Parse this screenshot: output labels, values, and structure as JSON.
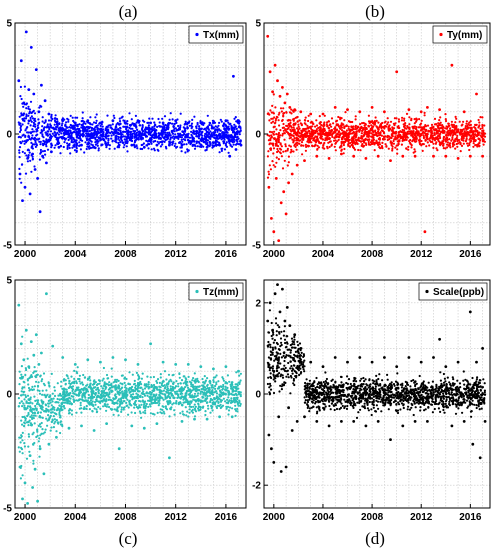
{
  "chart_data": [
    {
      "panel": "(a)",
      "type": "scatter",
      "color": "#0000ff",
      "legend": "Tx(mm)",
      "legend_position": "top-right",
      "grid": true,
      "xlim": [
        1999.2,
        2017.6
      ],
      "ylim": [
        -5,
        5
      ],
      "x_ticks": [
        2000,
        2004,
        2008,
        2012,
        2016
      ],
      "y_ticks": [
        5,
        0,
        -5
      ],
      "x_tick_labels": [
        "2000",
        "2004",
        "2008",
        "2012",
        "2016"
      ],
      "y_tick_labels": [
        "5",
        "0",
        "-5"
      ],
      "show_x_tick_labels": true,
      "series": [
        {
          "name": "Tx(mm)",
          "color": "#0000ff",
          "points": [
            [
              1999.5,
              2.4
            ],
            [
              1999.6,
              -1.8
            ],
            [
              1999.7,
              3.3
            ],
            [
              1999.8,
              -3.0
            ],
            [
              1999.9,
              1.4
            ],
            [
              2000.0,
              -2.4
            ],
            [
              2000.1,
              4.6
            ],
            [
              2000.2,
              -1.1
            ],
            [
              2000.3,
              2.0
            ],
            [
              2000.4,
              -2.7
            ],
            [
              2000.5,
              3.9
            ],
            [
              2000.6,
              -0.9
            ],
            [
              2000.7,
              1.8
            ],
            [
              2000.8,
              -1.6
            ],
            [
              2000.9,
              2.9
            ],
            [
              2001.0,
              -2.0
            ],
            [
              2001.1,
              1.0
            ],
            [
              2001.2,
              -3.5
            ],
            [
              2001.3,
              2.2
            ],
            [
              2001.4,
              -1.0
            ],
            [
              2001.6,
              1.5
            ],
            [
              2001.7,
              -1.3
            ],
            [
              2001.9,
              0.9
            ],
            [
              2002.1,
              -0.8
            ],
            [
              2002.4,
              0.7
            ],
            [
              2002.7,
              -0.6
            ],
            [
              2003.0,
              0.6
            ],
            [
              2003.5,
              -0.5
            ],
            [
              2004.0,
              0.5
            ],
            [
              2004.5,
              -0.5
            ],
            [
              2005.0,
              0.6
            ],
            [
              2005.5,
              -0.6
            ],
            [
              2006.0,
              0.5
            ],
            [
              2006.5,
              -0.5
            ],
            [
              2007.0,
              0.6
            ],
            [
              2007.5,
              -0.5
            ],
            [
              2008.0,
              0.5
            ],
            [
              2008.5,
              -0.5
            ],
            [
              2009.0,
              0.6
            ],
            [
              2009.5,
              -0.6
            ],
            [
              2010.0,
              0.5
            ],
            [
              2010.5,
              -0.5
            ],
            [
              2011.0,
              0.5
            ],
            [
              2011.5,
              -0.5
            ],
            [
              2012.0,
              0.6
            ],
            [
              2012.5,
              -0.5
            ],
            [
              2013.0,
              0.5
            ],
            [
              2013.5,
              -0.5
            ],
            [
              2014.0,
              0.5
            ],
            [
              2014.5,
              -0.6
            ],
            [
              2015.0,
              0.5
            ],
            [
              2015.5,
              -0.5
            ],
            [
              2016.0,
              0.6
            ],
            [
              2016.3,
              -1.0
            ],
            [
              2016.6,
              2.6
            ],
            [
              2016.8,
              -0.7
            ],
            [
              2017.0,
              0.6
            ],
            [
              2017.2,
              -0.5
            ]
          ]
        }
      ]
    },
    {
      "panel": "(b)",
      "type": "scatter",
      "color": "#ff0000",
      "legend": "Ty(mm)",
      "legend_position": "top-right",
      "grid": true,
      "xlim": [
        1999.2,
        2017.6
      ],
      "ylim": [
        -5,
        5
      ],
      "x_ticks": [
        2000,
        2004,
        2008,
        2012,
        2016
      ],
      "y_ticks": [
        5,
        0,
        -5
      ],
      "x_tick_labels": [
        "2000",
        "2004",
        "2008",
        "2012",
        "2016"
      ],
      "y_tick_labels": [
        "5",
        "0",
        "-5"
      ],
      "show_x_tick_labels": true,
      "series": [
        {
          "name": "Ty(mm)",
          "color": "#ff0000",
          "points": [
            [
              1999.5,
              4.4
            ],
            [
              1999.6,
              -2.4
            ],
            [
              1999.7,
              2.8
            ],
            [
              1999.8,
              -3.8
            ],
            [
              1999.9,
              1.9
            ],
            [
              2000.0,
              -4.4
            ],
            [
              2000.1,
              3.1
            ],
            [
              2000.2,
              -2.0
            ],
            [
              2000.3,
              2.4
            ],
            [
              2000.4,
              -4.8
            ],
            [
              2000.5,
              1.7
            ],
            [
              2000.6,
              -3.1
            ],
            [
              2000.7,
              2.1
            ],
            [
              2000.8,
              -2.6
            ],
            [
              2000.9,
              1.4
            ],
            [
              2001.0,
              -3.6
            ],
            [
              2001.1,
              1.8
            ],
            [
              2001.2,
              -2.2
            ],
            [
              2001.3,
              1.2
            ],
            [
              2001.5,
              -1.8
            ],
            [
              2001.7,
              1.1
            ],
            [
              2001.9,
              -1.4
            ],
            [
              2002.2,
              1.0
            ],
            [
              2002.5,
              -1.2
            ],
            [
              2003.0,
              0.9
            ],
            [
              2003.5,
              -1.0
            ],
            [
              2004.0,
              0.9
            ],
            [
              2004.5,
              -1.1
            ],
            [
              2005.0,
              1.2
            ],
            [
              2005.5,
              -0.9
            ],
            [
              2006.0,
              1.1
            ],
            [
              2006.5,
              -1.0
            ],
            [
              2007.0,
              1.0
            ],
            [
              2007.5,
              -1.1
            ],
            [
              2008.0,
              1.2
            ],
            [
              2008.5,
              -1.0
            ],
            [
              2009.0,
              1.0
            ],
            [
              2009.5,
              -1.2
            ],
            [
              2010.0,
              2.8
            ],
            [
              2010.5,
              -1.0
            ],
            [
              2011.0,
              1.1
            ],
            [
              2011.5,
              -1.0
            ],
            [
              2012.0,
              1.0
            ],
            [
              2012.3,
              -4.4
            ],
            [
              2012.5,
              1.2
            ],
            [
              2013.0,
              -1.0
            ],
            [
              2013.5,
              1.1
            ],
            [
              2014.0,
              -1.0
            ],
            [
              2014.5,
              3.1
            ],
            [
              2015.0,
              -1.1
            ],
            [
              2015.5,
              1.0
            ],
            [
              2016.0,
              -1.0
            ],
            [
              2016.5,
              1.8
            ],
            [
              2017.0,
              -1.0
            ]
          ]
        }
      ]
    },
    {
      "panel": "(c)",
      "type": "scatter",
      "color": "#2abfb8",
      "legend": "Tz(mm)",
      "legend_position": "top-right",
      "grid": true,
      "xlim": [
        1999.2,
        2017.6
      ],
      "ylim": [
        -5,
        5
      ],
      "x_ticks": [
        2000,
        2004,
        2008,
        2012,
        2016
      ],
      "y_ticks": [
        5,
        0,
        -5
      ],
      "x_tick_labels": [
        "2000",
        "2004",
        "2008",
        "2012",
        "2016"
      ],
      "y_tick_labels": [
        "5",
        "0",
        "-5"
      ],
      "show_x_tick_labels": true,
      "series": [
        {
          "name": "Tz(mm)",
          "color": "#2abfb8",
          "points": [
            [
              1999.5,
              3.9
            ],
            [
              1999.6,
              -3.2
            ],
            [
              1999.7,
              2.2
            ],
            [
              1999.8,
              -4.6
            ],
            [
              1999.9,
              1.5
            ],
            [
              2000.0,
              -3.9
            ],
            [
              2000.1,
              2.8
            ],
            [
              2000.2,
              -4.8
            ],
            [
              2000.3,
              1.2
            ],
            [
              2000.4,
              -2.7
            ],
            [
              2000.5,
              2.3
            ],
            [
              2000.6,
              -4.1
            ],
            [
              2000.7,
              1.7
            ],
            [
              2000.8,
              -3.3
            ],
            [
              2000.9,
              2.6
            ],
            [
              2001.0,
              -4.7
            ],
            [
              2001.1,
              1.3
            ],
            [
              2001.2,
              -2.4
            ],
            [
              2001.3,
              1.8
            ],
            [
              2001.5,
              -3.5
            ],
            [
              2001.7,
              4.4
            ],
            [
              2001.9,
              -2.2
            ],
            [
              2002.2,
              2.1
            ],
            [
              2002.5,
              -1.9
            ],
            [
              2003.0,
              1.6
            ],
            [
              2003.5,
              -1.5
            ],
            [
              2004.0,
              1.3
            ],
            [
              2004.5,
              -1.4
            ],
            [
              2005.0,
              1.5
            ],
            [
              2005.5,
              -1.6
            ],
            [
              2006.0,
              1.4
            ],
            [
              2006.5,
              -1.3
            ],
            [
              2007.0,
              1.6
            ],
            [
              2007.5,
              -2.4
            ],
            [
              2008.0,
              1.5
            ],
            [
              2008.5,
              -1.4
            ],
            [
              2009.0,
              1.3
            ],
            [
              2009.5,
              -1.5
            ],
            [
              2010.0,
              2.2
            ],
            [
              2010.5,
              -1.3
            ],
            [
              2011.0,
              1.4
            ],
            [
              2011.5,
              -2.8
            ],
            [
              2012.0,
              1.3
            ],
            [
              2012.5,
              -1.2
            ],
            [
              2013.0,
              1.3
            ],
            [
              2013.5,
              -1.1
            ],
            [
              2014.0,
              1.2
            ],
            [
              2014.5,
              -1.1
            ],
            [
              2015.0,
              1.1
            ],
            [
              2015.5,
              -1.0
            ],
            [
              2016.0,
              1.2
            ],
            [
              2016.5,
              -1.0
            ],
            [
              2017.0,
              1.0
            ]
          ]
        }
      ]
    },
    {
      "panel": "(d)",
      "type": "scatter",
      "color": "#000000",
      "legend": "Scale(ppb)",
      "legend_position": "top-right",
      "grid": true,
      "xlim": [
        1999.2,
        2017.6
      ],
      "ylim": [
        -2.5,
        2.5
      ],
      "x_ticks": [
        2000,
        2004,
        2008,
        2012,
        2016
      ],
      "y_ticks": [
        2,
        0,
        -2
      ],
      "x_tick_labels": [
        "2000",
        "2004",
        "2008",
        "2012",
        "2016"
      ],
      "y_tick_labels": [
        "2",
        "0",
        "-2"
      ],
      "show_x_tick_labels": true,
      "series": [
        {
          "name": "Scale(ppb)",
          "color": "#000000",
          "points": [
            [
              1999.5,
              1.6
            ],
            [
              1999.6,
              -0.9
            ],
            [
              1999.7,
              2.0
            ],
            [
              1999.8,
              -1.2
            ],
            [
              1999.9,
              1.4
            ],
            [
              2000.0,
              -1.5
            ],
            [
              2000.1,
              2.2
            ],
            [
              2000.2,
              0.4
            ],
            [
              2000.3,
              2.4
            ],
            [
              2000.4,
              -0.5
            ],
            [
              2000.5,
              1.8
            ],
            [
              2000.6,
              -1.7
            ],
            [
              2000.7,
              2.3
            ],
            [
              2000.8,
              0.2
            ],
            [
              2000.9,
              1.6
            ],
            [
              2001.0,
              -1.6
            ],
            [
              2001.1,
              1.9
            ],
            [
              2001.2,
              -0.3
            ],
            [
              2001.3,
              1.5
            ],
            [
              2001.5,
              -0.8
            ],
            [
              2001.7,
              1.3
            ],
            [
              2001.9,
              -0.6
            ],
            [
              2002.2,
              1.0
            ],
            [
              2002.5,
              -0.5
            ],
            [
              2003.0,
              0.7
            ],
            [
              2003.5,
              -0.6
            ],
            [
              2004.0,
              0.6
            ],
            [
              2004.5,
              -0.7
            ],
            [
              2005.0,
              0.8
            ],
            [
              2005.5,
              -0.6
            ],
            [
              2006.0,
              0.7
            ],
            [
              2006.5,
              -0.6
            ],
            [
              2007.0,
              0.8
            ],
            [
              2007.5,
              -0.7
            ],
            [
              2008.0,
              0.7
            ],
            [
              2008.5,
              -0.6
            ],
            [
              2009.0,
              0.8
            ],
            [
              2009.5,
              -1.0
            ],
            [
              2010.0,
              0.6
            ],
            [
              2010.5,
              -0.7
            ],
            [
              2011.0,
              0.8
            ],
            [
              2011.5,
              -0.6
            ],
            [
              2012.0,
              0.7
            ],
            [
              2012.5,
              -0.6
            ],
            [
              2013.0,
              0.8
            ],
            [
              2013.5,
              1.2
            ],
            [
              2014.0,
              0.6
            ],
            [
              2014.5,
              -0.7
            ],
            [
              2015.0,
              0.7
            ],
            [
              2015.5,
              -0.6
            ],
            [
              2016.0,
              1.8
            ],
            [
              2016.2,
              -1.1
            ],
            [
              2016.5,
              0.7
            ],
            [
              2016.8,
              -1.4
            ],
            [
              2017.0,
              1.0
            ],
            [
              2017.2,
              -0.6
            ]
          ]
        }
      ]
    }
  ]
}
